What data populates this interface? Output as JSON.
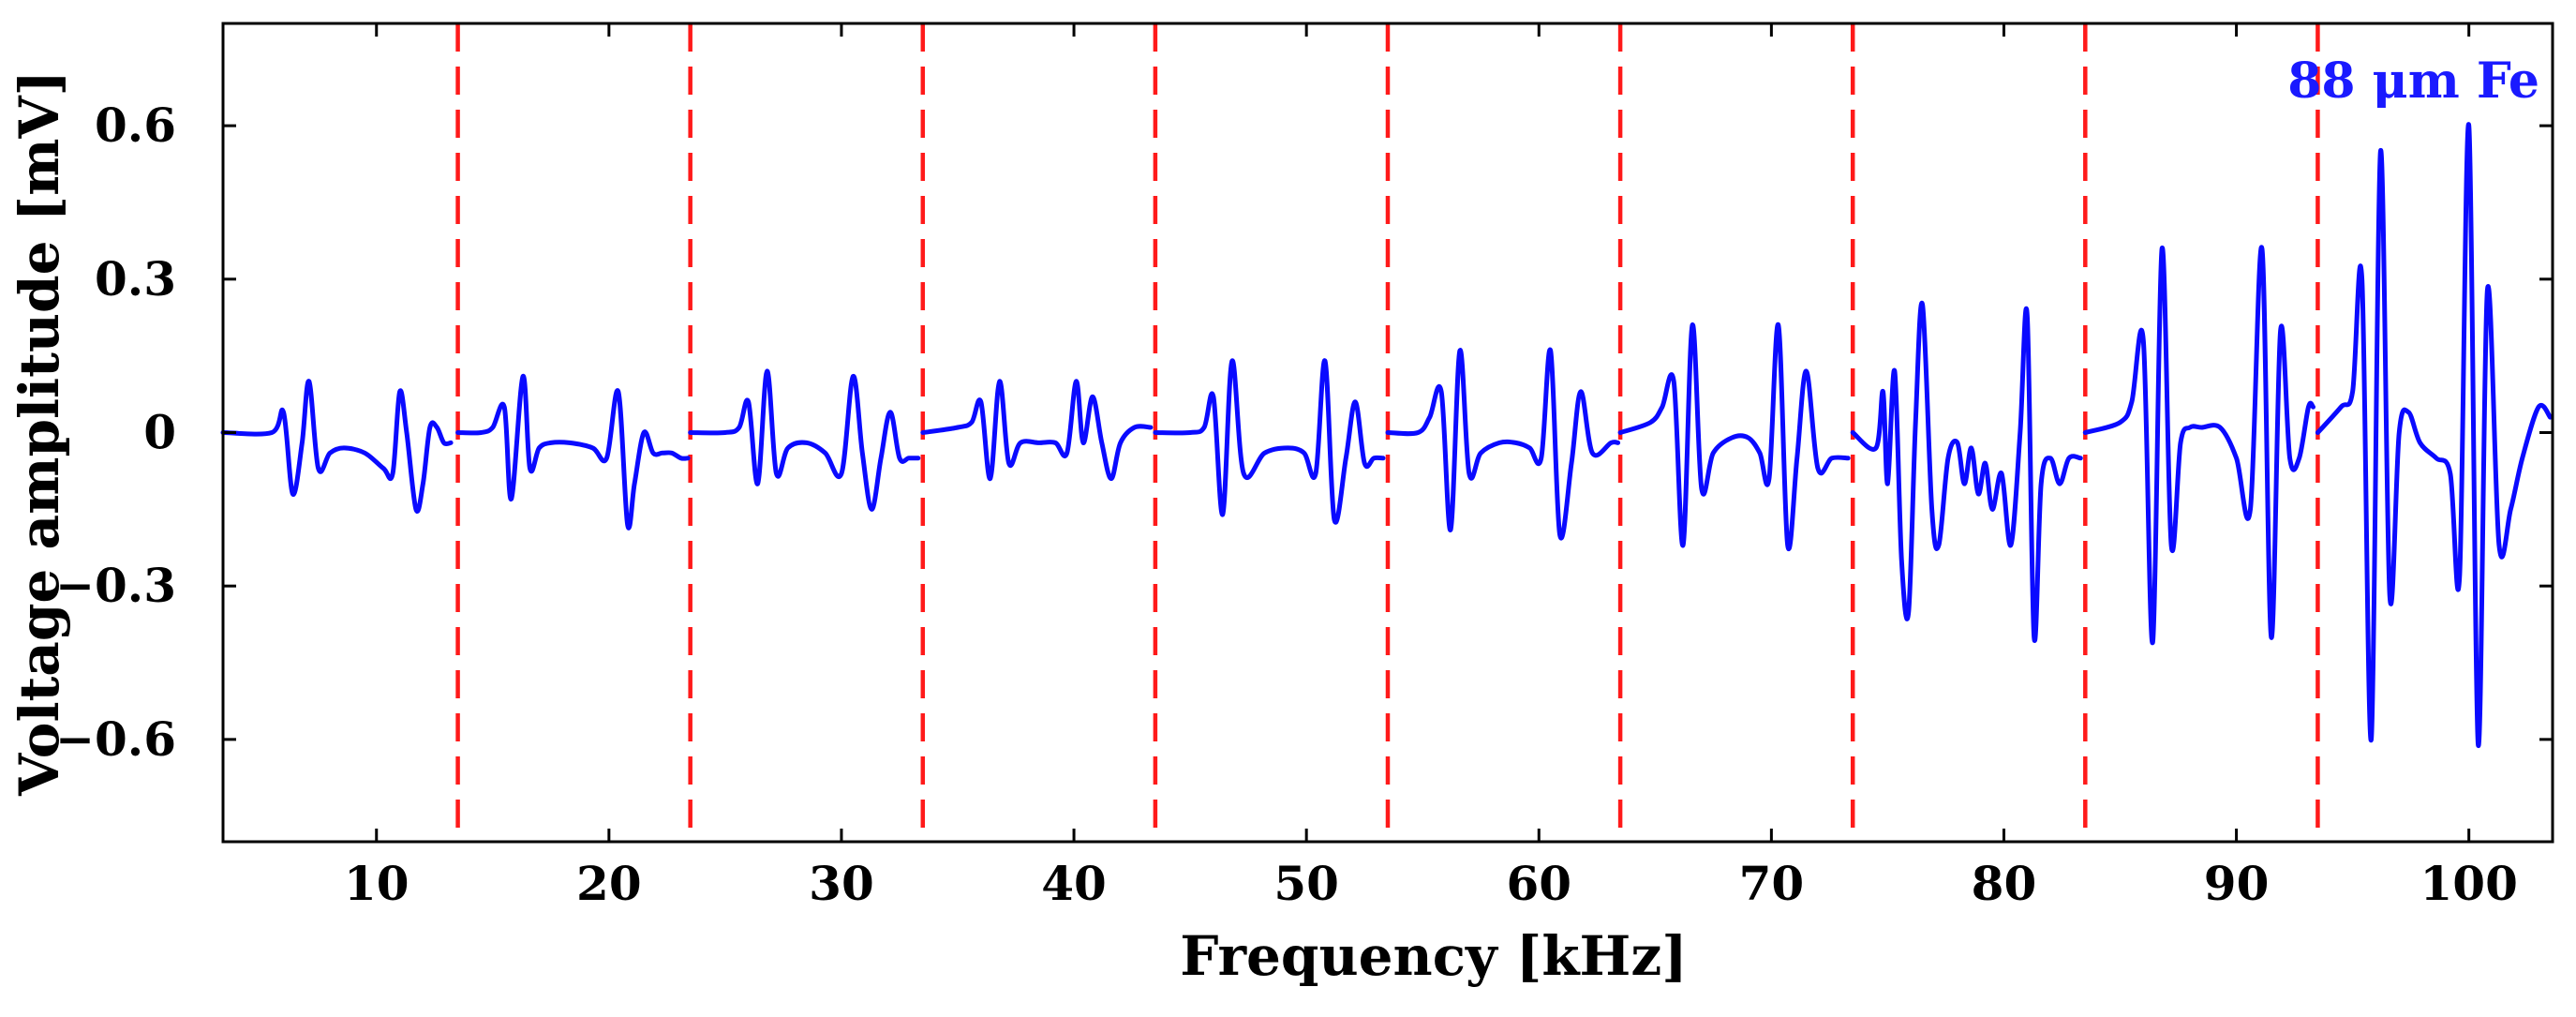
{
  "chart_data": {
    "type": "line",
    "title": "",
    "xlabel": "Frequency [kHz]",
    "ylabel": "Voltage amplitude [mV]",
    "xlim": [
      3.4,
      103.6
    ],
    "ylim": [
      -0.8,
      0.8
    ],
    "x_ticks": [
      10,
      20,
      30,
      40,
      50,
      60,
      70,
      80,
      90,
      100
    ],
    "x_tick_labels": [
      "10",
      "20",
      "30",
      "40",
      "50",
      "60",
      "70",
      "80",
      "90",
      "100"
    ],
    "y_ticks": [
      0.6,
      0.3,
      0,
      -0.3,
      -0.6
    ],
    "y_tick_labels": [
      "0.6",
      "0.3",
      "0",
      "−0.3",
      "−0.6"
    ],
    "grid": false,
    "annotation": "88 μm Fe",
    "annotation_color": "#1a1aff",
    "line_color": "#0a0aff",
    "boundary_color": "#ff1a1a",
    "segment_boundaries_khz": [
      13.5,
      23.5,
      33.5,
      43.5,
      53.5,
      63.5,
      73.5,
      83.5,
      93.5
    ],
    "series": [
      {
        "name": "88 μm Fe",
        "segments": [
          {
            "x": [
              3.4,
              5.5,
              6.0,
              6.4,
              6.8,
              7.1,
              7.5,
              8.0,
              8.6,
              9.5,
              10.3,
              10.7,
              11.0,
              11.3,
              11.7,
              12.0,
              12.3,
              12.6,
              12.9,
              13.2
            ],
            "y": [
              0.0,
              0.0,
              0.04,
              -0.12,
              -0.02,
              0.1,
              -0.07,
              -0.04,
              -0.03,
              -0.04,
              -0.07,
              -0.08,
              0.08,
              0.0,
              -0.15,
              -0.1,
              0.01,
              0.01,
              -0.02,
              -0.02
            ]
          },
          {
            "x": [
              13.5,
              14.5,
              15.0,
              15.5,
              15.8,
              16.3,
              16.6,
              17.0,
              17.5,
              18.3,
              19.3,
              19.9,
              20.4,
              20.8,
              21.1,
              21.5,
              21.9,
              22.3,
              22.7,
              23.1,
              23.4
            ],
            "y": [
              0.0,
              0.0,
              0.01,
              0.05,
              -0.13,
              0.11,
              -0.07,
              -0.03,
              -0.02,
              -0.02,
              -0.03,
              -0.05,
              0.08,
              -0.18,
              -0.1,
              0.0,
              -0.04,
              -0.04,
              -0.04,
              -0.05,
              -0.05
            ]
          },
          {
            "x": [
              23.5,
              25.0,
              25.6,
              26.0,
              26.4,
              26.8,
              27.2,
              27.7,
              28.5,
              29.3,
              30.0,
              30.5,
              30.9,
              31.3,
              31.7,
              32.1,
              32.5,
              32.9,
              33.3
            ],
            "y": [
              0.0,
              0.0,
              0.01,
              0.06,
              -0.1,
              0.12,
              -0.08,
              -0.03,
              -0.02,
              -0.04,
              -0.08,
              0.11,
              -0.04,
              -0.15,
              -0.05,
              0.04,
              -0.05,
              -0.05,
              -0.05
            ]
          },
          {
            "x": [
              33.5,
              35.0,
              35.6,
              36.0,
              36.4,
              36.8,
              37.2,
              37.7,
              38.5,
              39.2,
              39.7,
              40.1,
              40.4,
              40.8,
              41.2,
              41.6,
              42.0,
              42.6,
              43.3
            ],
            "y": [
              0.0,
              0.01,
              0.02,
              0.06,
              -0.09,
              0.1,
              -0.06,
              -0.02,
              -0.02,
              -0.02,
              -0.04,
              0.1,
              -0.02,
              0.07,
              -0.02,
              -0.09,
              -0.02,
              0.01,
              0.01
            ]
          },
          {
            "x": [
              43.5,
              45.0,
              45.6,
              46.0,
              46.4,
              46.8,
              47.3,
              48.2,
              49.2,
              49.9,
              50.4,
              50.8,
              51.2,
              51.7,
              52.1,
              52.5,
              52.9,
              53.3
            ],
            "y": [
              0.0,
              0.0,
              0.01,
              0.07,
              -0.16,
              0.14,
              -0.08,
              -0.04,
              -0.03,
              -0.04,
              -0.08,
              0.14,
              -0.17,
              -0.05,
              0.06,
              -0.06,
              -0.05,
              -0.05
            ]
          },
          {
            "x": [
              53.5,
              54.8,
              55.3,
              55.8,
              56.2,
              56.6,
              57.0,
              57.5,
              58.3,
              59.0,
              59.6,
              60.1,
              60.5,
              60.9,
              61.4,
              61.8,
              62.3,
              63.1,
              63.4
            ],
            "y": [
              0.0,
              0.0,
              0.03,
              0.08,
              -0.19,
              0.16,
              -0.08,
              -0.04,
              -0.02,
              -0.02,
              -0.03,
              -0.05,
              0.16,
              -0.2,
              -0.06,
              0.08,
              -0.04,
              -0.02,
              -0.02
            ]
          },
          {
            "x": [
              63.5,
              64.8,
              65.3,
              65.8,
              66.2,
              66.6,
              67.0,
              67.5,
              68.3,
              69.0,
              69.5,
              69.9,
              70.3,
              70.7,
              71.1,
              71.5,
              72.0,
              72.6,
              73.3
            ],
            "y": [
              0.0,
              0.02,
              0.05,
              0.1,
              -0.22,
              0.21,
              -0.11,
              -0.04,
              -0.01,
              -0.01,
              -0.04,
              -0.09,
              0.21,
              -0.22,
              -0.05,
              0.12,
              -0.07,
              -0.05,
              -0.05
            ]
          },
          {
            "x": [
              73.5,
              74.5,
              74.8,
              75.0,
              75.3,
              75.6,
              75.9,
              76.2,
              76.5,
              76.9,
              77.2,
              77.6,
              78.0,
              78.3,
              78.6,
              78.9,
              79.2,
              79.5,
              79.9,
              80.3,
              80.7,
              81.0,
              81.3,
              81.6,
              82.0,
              82.4,
              82.8,
              83.3
            ],
            "y": [
              0.0,
              -0.03,
              0.08,
              -0.1,
              0.12,
              -0.25,
              -0.35,
              0.02,
              0.25,
              -0.15,
              -0.22,
              -0.05,
              -0.02,
              -0.1,
              -0.03,
              -0.12,
              -0.06,
              -0.15,
              -0.08,
              -0.22,
              0.0,
              0.23,
              -0.4,
              -0.1,
              -0.05,
              -0.1,
              -0.05,
              -0.05
            ]
          },
          {
            "x": [
              83.5,
              85.0,
              85.5,
              86.0,
              86.4,
              86.8,
              87.2,
              87.6,
              88.0,
              88.5,
              89.3,
              90.0,
              90.6,
              91.1,
              91.5,
              91.9,
              92.3,
              92.7,
              93.1,
              93.3
            ],
            "y": [
              0.0,
              0.02,
              0.06,
              0.18,
              -0.41,
              0.36,
              -0.22,
              -0.02,
              0.01,
              0.01,
              0.01,
              -0.05,
              -0.15,
              0.36,
              -0.4,
              0.2,
              -0.05,
              -0.05,
              0.05,
              0.05
            ]
          },
          {
            "x": [
              93.5,
              94.5,
              95.0,
              95.4,
              95.8,
              96.2,
              96.6,
              97.0,
              97.4,
              97.9,
              98.6,
              99.2,
              99.6,
              100.0,
              100.4,
              100.8,
              101.3,
              101.8,
              102.3,
              103.0,
              103.5
            ],
            "y": [
              0.0,
              0.05,
              0.08,
              0.3,
              -0.6,
              0.55,
              -0.32,
              0.0,
              0.04,
              -0.02,
              -0.05,
              -0.08,
              -0.28,
              0.6,
              -0.61,
              0.28,
              -0.22,
              -0.15,
              -0.05,
              0.05,
              0.03
            ]
          }
        ]
      }
    ]
  }
}
